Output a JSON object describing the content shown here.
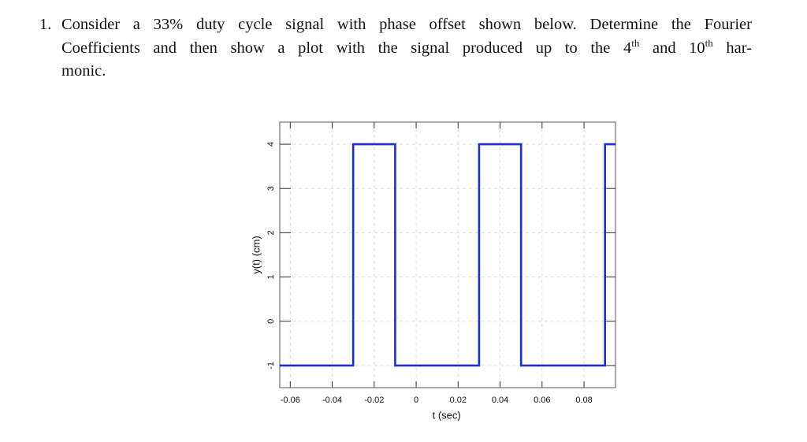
{
  "problem": {
    "number": "1.",
    "lines": [
      [
        {
          "text": "Consider a 33% duty cycle signal with phase offset shown below. Determine the Fourier"
        }
      ],
      [
        {
          "text": "Coefficients and then show a plot with the signal produced up to the 4"
        },
        {
          "text": "th",
          "sup": true
        },
        {
          "text": " and 10"
        },
        {
          "text": "th",
          "sup": true
        },
        {
          "text": " har-"
        }
      ],
      [
        {
          "text": "monic."
        }
      ]
    ]
  },
  "chart_data": {
    "type": "line",
    "xlabel": "t (sec)",
    "ylabel": "y(t) (cm)",
    "x": [
      -0.065,
      -0.03,
      -0.03,
      -0.01,
      -0.01,
      0.03,
      0.03,
      0.05,
      0.05,
      0.09,
      0.09,
      0.095
    ],
    "values": [
      -1,
      -1,
      4,
      4,
      -1,
      -1,
      4,
      4,
      -1,
      -1,
      4,
      4
    ],
    "color": "#1f2bd8",
    "xlim": [
      -0.065,
      0.095
    ],
    "ylim": [
      -1.5,
      4.5
    ],
    "xticks": [
      -0.06,
      -0.04,
      -0.02,
      0,
      0.02,
      0.04,
      0.06,
      0.08
    ],
    "yticks": [
      -1,
      0,
      1,
      2,
      3,
      4
    ],
    "grid": true
  }
}
